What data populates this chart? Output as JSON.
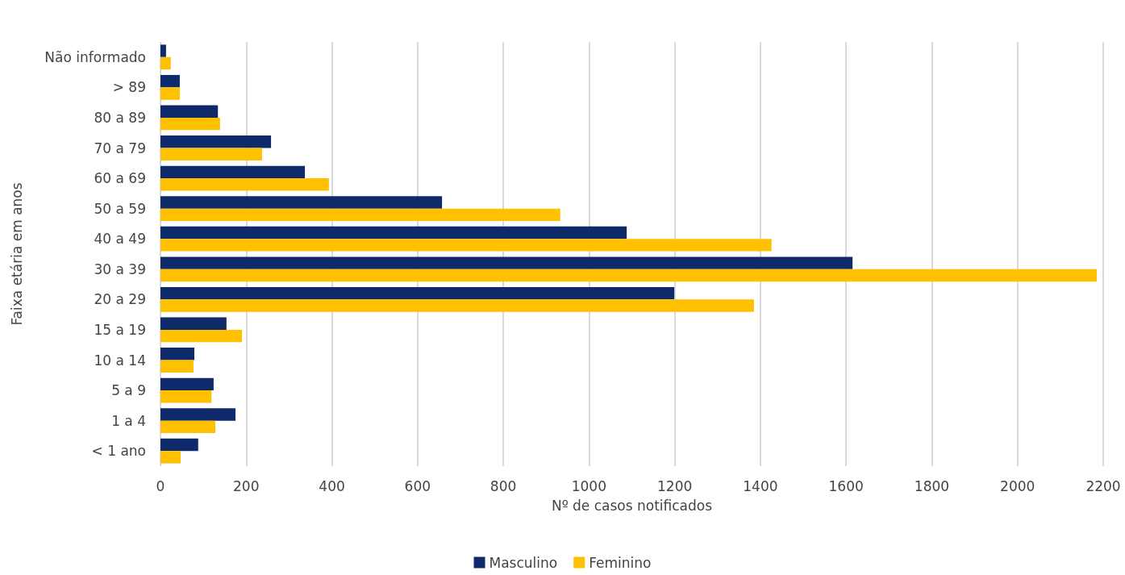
{
  "chart_data": {
    "type": "bar",
    "orientation": "horizontal",
    "xlabel": "Nº de casos notificados",
    "ylabel": "Faixa etária em anos",
    "categories": [
      "Não informado",
      "> 89",
      "80 a 89",
      "70 a 79",
      "60 a 69",
      "50 a 59",
      "40 a 49",
      "30 a 39",
      "20 a 29",
      "15 a 19",
      "10 a 14",
      "5 a 9",
      "1 a 4",
      "< 1 ano"
    ],
    "series": [
      {
        "name": "Masculino",
        "color": "#0e2a6b",
        "values": [
          13,
          45,
          134,
          258,
          337,
          657,
          1088,
          1615,
          1199,
          154,
          79,
          124,
          175,
          88
        ]
      },
      {
        "name": "Feminino",
        "color": "#ffc000",
        "values": [
          24,
          45,
          139,
          237,
          393,
          933,
          1426,
          2185,
          1385,
          190,
          77,
          119,
          128,
          47
        ]
      }
    ],
    "xlim": [
      0,
      2200
    ],
    "xticks": [
      0,
      200,
      400,
      600,
      800,
      1000,
      1200,
      1400,
      1600,
      1800,
      2000,
      2200
    ],
    "grid": "x",
    "legend": "bottom"
  }
}
